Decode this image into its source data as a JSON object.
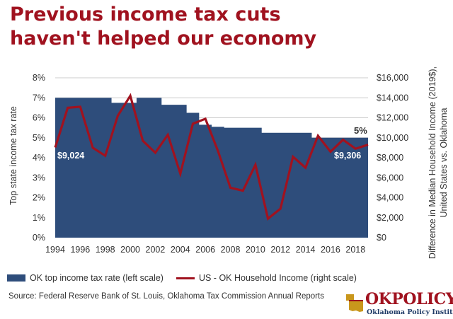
{
  "title": {
    "line1": "Previous income tax cuts",
    "line2": "haven't helped our economy"
  },
  "chart_data": {
    "type": "area+line",
    "x": [
      1994,
      1995,
      1996,
      1997,
      1998,
      1999,
      2000,
      2001,
      2002,
      2003,
      2004,
      2005,
      2006,
      2007,
      2008,
      2009,
      2010,
      2011,
      2012,
      2013,
      2014,
      2015,
      2016,
      2017,
      2018,
      2019
    ],
    "series": [
      {
        "name": "OK top income tax rate (left scale)",
        "axis": "left",
        "values": [
          7,
          7,
          7,
          7,
          7,
          6.75,
          6.75,
          7,
          7,
          6.65,
          6.65,
          6.25,
          5.65,
          5.55,
          5.5,
          5.5,
          5.5,
          5.25,
          5.25,
          5.25,
          5.25,
          5,
          5,
          5,
          5,
          5
        ]
      },
      {
        "name": "US - OK Household Income (right scale)",
        "axis": "right",
        "values": [
          9024,
          13000,
          13100,
          9000,
          8200,
          12200,
          14200,
          9700,
          8500,
          10300,
          6400,
          11400,
          11900,
          8700,
          5000,
          4700,
          7300,
          1900,
          2900,
          8100,
          7000,
          10200,
          8600,
          9800,
          8900,
          9306
        ]
      }
    ],
    "left_axis": {
      "label": "Top state income tax rate",
      "ticks": [
        "0%",
        "1%",
        "2%",
        "3%",
        "4%",
        "5%",
        "6%",
        "7%",
        "8%"
      ],
      "ylim": [
        0,
        8
      ]
    },
    "right_axis": {
      "label_line1": "Difference in Median Household Income (2019$),",
      "label_line2": "United States vs. Oklahoma",
      "ticks": [
        "$0",
        "$2,000",
        "$4,000",
        "$6,000",
        "$8,000",
        "$10,000",
        "$12,000",
        "$14,000",
        "$16,000"
      ],
      "ylim": [
        0,
        16000
      ]
    },
    "x_ticks": [
      "1994",
      "1996",
      "1998",
      "2000",
      "2002",
      "2004",
      "2006",
      "2008",
      "2010",
      "2012",
      "2014",
      "2016",
      "2018"
    ],
    "annotations": {
      "start_rate": "7%",
      "end_rate": "5%",
      "start_income": "$9,024",
      "end_income": "$9,306"
    },
    "colors": {
      "area": "#2e4d7b",
      "line": "#a0121f",
      "grid": "#cccccc"
    }
  },
  "legend": {
    "area_label": "OK top income tax rate (left scale)",
    "line_label": "US - OK Household Income (right scale)"
  },
  "source": "Source: Federal Reserve Bank of St. Louis, Oklahoma Tax Commission Annual Reports",
  "logo": {
    "name": "OKPOLICY",
    "subtitle": "Oklahoma Policy Institute"
  }
}
